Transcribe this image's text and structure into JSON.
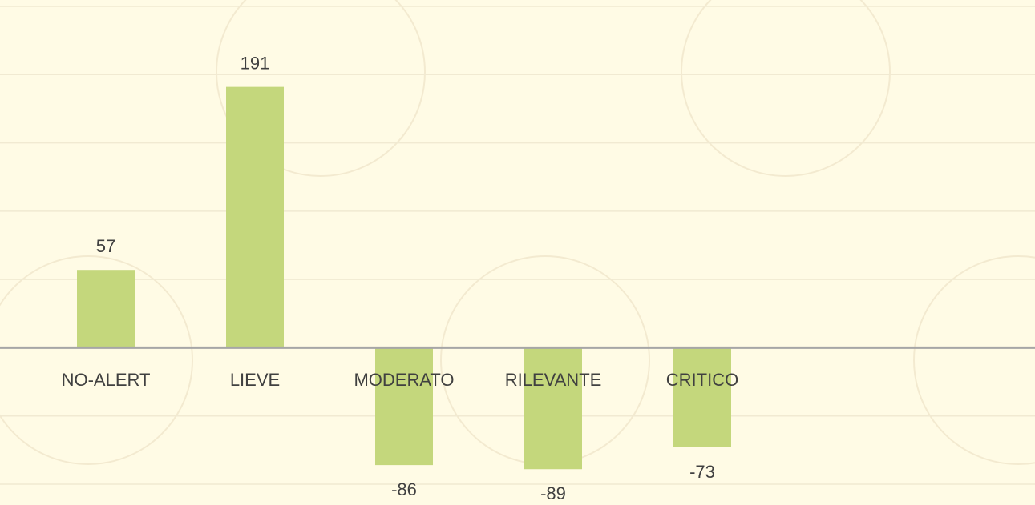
{
  "chart_data": {
    "type": "bar",
    "categories": [
      "NO-ALERT",
      "LIEVE",
      "MODERATO",
      "RILEVANTE",
      "CRITICO"
    ],
    "values": [
      57,
      191,
      -86,
      -89,
      -73
    ],
    "color": "#c4d77c",
    "ylim": [
      -100,
      250
    ],
    "yticks": [
      -100,
      -50,
      0,
      50,
      100,
      150,
      200,
      250
    ],
    "grid": true
  }
}
